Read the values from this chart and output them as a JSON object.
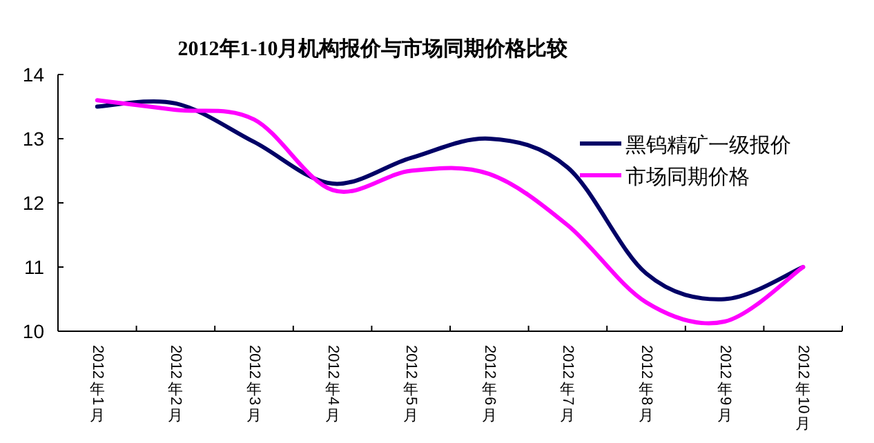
{
  "chart_data": {
    "type": "line",
    "title": "2012年1-10月机构报价与市场同期价格比较",
    "categories": [
      "2012年1月",
      "2012年2月",
      "2012年3月",
      "2012年4月",
      "2012年5月",
      "2012年6月",
      "2012年7月",
      "2012年8月",
      "2012年9月",
      "2012年10月"
    ],
    "series": [
      {
        "name": "黑钨精矿一级报价",
        "color": "#000066",
        "values": [
          13.5,
          13.55,
          12.95,
          12.3,
          12.7,
          13.0,
          12.55,
          10.9,
          10.5,
          11.0
        ]
      },
      {
        "name": "市场同期价格",
        "color": "#ff00ff",
        "values": [
          13.6,
          13.45,
          13.3,
          12.2,
          12.5,
          12.45,
          11.65,
          10.45,
          10.15,
          11.0
        ]
      }
    ],
    "ylim": [
      10,
      14
    ],
    "yticks": [
      10,
      11,
      12,
      13,
      14
    ],
    "grid": false,
    "legend": "right",
    "marker": "none",
    "line_style": "solid"
  }
}
